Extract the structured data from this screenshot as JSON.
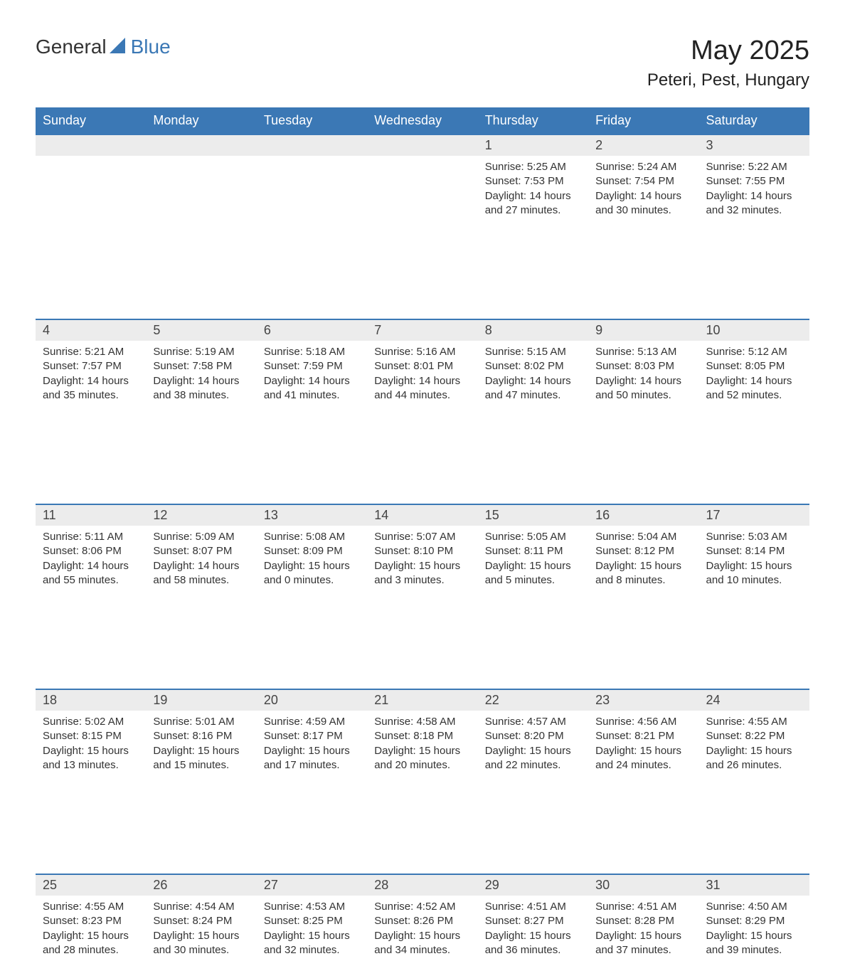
{
  "brand": {
    "general": "General",
    "blue": "Blue"
  },
  "title": "May 2025",
  "location": "Peteri, Pest, Hungary",
  "colors": {
    "header_bg": "#3b78b5",
    "header_text": "#ffffff",
    "daynum_bg": "#ececec",
    "border_top": "#3b78b5",
    "body_text": "#333333",
    "background": "#ffffff"
  },
  "columns": [
    "Sunday",
    "Monday",
    "Tuesday",
    "Wednesday",
    "Thursday",
    "Friday",
    "Saturday"
  ],
  "weeks": [
    [
      null,
      null,
      null,
      null,
      {
        "n": "1",
        "sunrise": "5:25 AM",
        "sunset": "7:53 PM",
        "daylight": "14 hours and 27 minutes."
      },
      {
        "n": "2",
        "sunrise": "5:24 AM",
        "sunset": "7:54 PM",
        "daylight": "14 hours and 30 minutes."
      },
      {
        "n": "3",
        "sunrise": "5:22 AM",
        "sunset": "7:55 PM",
        "daylight": "14 hours and 32 minutes."
      }
    ],
    [
      {
        "n": "4",
        "sunrise": "5:21 AM",
        "sunset": "7:57 PM",
        "daylight": "14 hours and 35 minutes."
      },
      {
        "n": "5",
        "sunrise": "5:19 AM",
        "sunset": "7:58 PM",
        "daylight": "14 hours and 38 minutes."
      },
      {
        "n": "6",
        "sunrise": "5:18 AM",
        "sunset": "7:59 PM",
        "daylight": "14 hours and 41 minutes."
      },
      {
        "n": "7",
        "sunrise": "5:16 AM",
        "sunset": "8:01 PM",
        "daylight": "14 hours and 44 minutes."
      },
      {
        "n": "8",
        "sunrise": "5:15 AM",
        "sunset": "8:02 PM",
        "daylight": "14 hours and 47 minutes."
      },
      {
        "n": "9",
        "sunrise": "5:13 AM",
        "sunset": "8:03 PM",
        "daylight": "14 hours and 50 minutes."
      },
      {
        "n": "10",
        "sunrise": "5:12 AM",
        "sunset": "8:05 PM",
        "daylight": "14 hours and 52 minutes."
      }
    ],
    [
      {
        "n": "11",
        "sunrise": "5:11 AM",
        "sunset": "8:06 PM",
        "daylight": "14 hours and 55 minutes."
      },
      {
        "n": "12",
        "sunrise": "5:09 AM",
        "sunset": "8:07 PM",
        "daylight": "14 hours and 58 minutes."
      },
      {
        "n": "13",
        "sunrise": "5:08 AM",
        "sunset": "8:09 PM",
        "daylight": "15 hours and 0 minutes."
      },
      {
        "n": "14",
        "sunrise": "5:07 AM",
        "sunset": "8:10 PM",
        "daylight": "15 hours and 3 minutes."
      },
      {
        "n": "15",
        "sunrise": "5:05 AM",
        "sunset": "8:11 PM",
        "daylight": "15 hours and 5 minutes."
      },
      {
        "n": "16",
        "sunrise": "5:04 AM",
        "sunset": "8:12 PM",
        "daylight": "15 hours and 8 minutes."
      },
      {
        "n": "17",
        "sunrise": "5:03 AM",
        "sunset": "8:14 PM",
        "daylight": "15 hours and 10 minutes."
      }
    ],
    [
      {
        "n": "18",
        "sunrise": "5:02 AM",
        "sunset": "8:15 PM",
        "daylight": "15 hours and 13 minutes."
      },
      {
        "n": "19",
        "sunrise": "5:01 AM",
        "sunset": "8:16 PM",
        "daylight": "15 hours and 15 minutes."
      },
      {
        "n": "20",
        "sunrise": "4:59 AM",
        "sunset": "8:17 PM",
        "daylight": "15 hours and 17 minutes."
      },
      {
        "n": "21",
        "sunrise": "4:58 AM",
        "sunset": "8:18 PM",
        "daylight": "15 hours and 20 minutes."
      },
      {
        "n": "22",
        "sunrise": "4:57 AM",
        "sunset": "8:20 PM",
        "daylight": "15 hours and 22 minutes."
      },
      {
        "n": "23",
        "sunrise": "4:56 AM",
        "sunset": "8:21 PM",
        "daylight": "15 hours and 24 minutes."
      },
      {
        "n": "24",
        "sunrise": "4:55 AM",
        "sunset": "8:22 PM",
        "daylight": "15 hours and 26 minutes."
      }
    ],
    [
      {
        "n": "25",
        "sunrise": "4:55 AM",
        "sunset": "8:23 PM",
        "daylight": "15 hours and 28 minutes."
      },
      {
        "n": "26",
        "sunrise": "4:54 AM",
        "sunset": "8:24 PM",
        "daylight": "15 hours and 30 minutes."
      },
      {
        "n": "27",
        "sunrise": "4:53 AM",
        "sunset": "8:25 PM",
        "daylight": "15 hours and 32 minutes."
      },
      {
        "n": "28",
        "sunrise": "4:52 AM",
        "sunset": "8:26 PM",
        "daylight": "15 hours and 34 minutes."
      },
      {
        "n": "29",
        "sunrise": "4:51 AM",
        "sunset": "8:27 PM",
        "daylight": "15 hours and 36 minutes."
      },
      {
        "n": "30",
        "sunrise": "4:51 AM",
        "sunset": "8:28 PM",
        "daylight": "15 hours and 37 minutes."
      },
      {
        "n": "31",
        "sunrise": "4:50 AM",
        "sunset": "8:29 PM",
        "daylight": "15 hours and 39 minutes."
      }
    ]
  ],
  "labels": {
    "sunrise_prefix": "Sunrise: ",
    "sunset_prefix": "Sunset: ",
    "daylight_prefix": "Daylight: "
  }
}
